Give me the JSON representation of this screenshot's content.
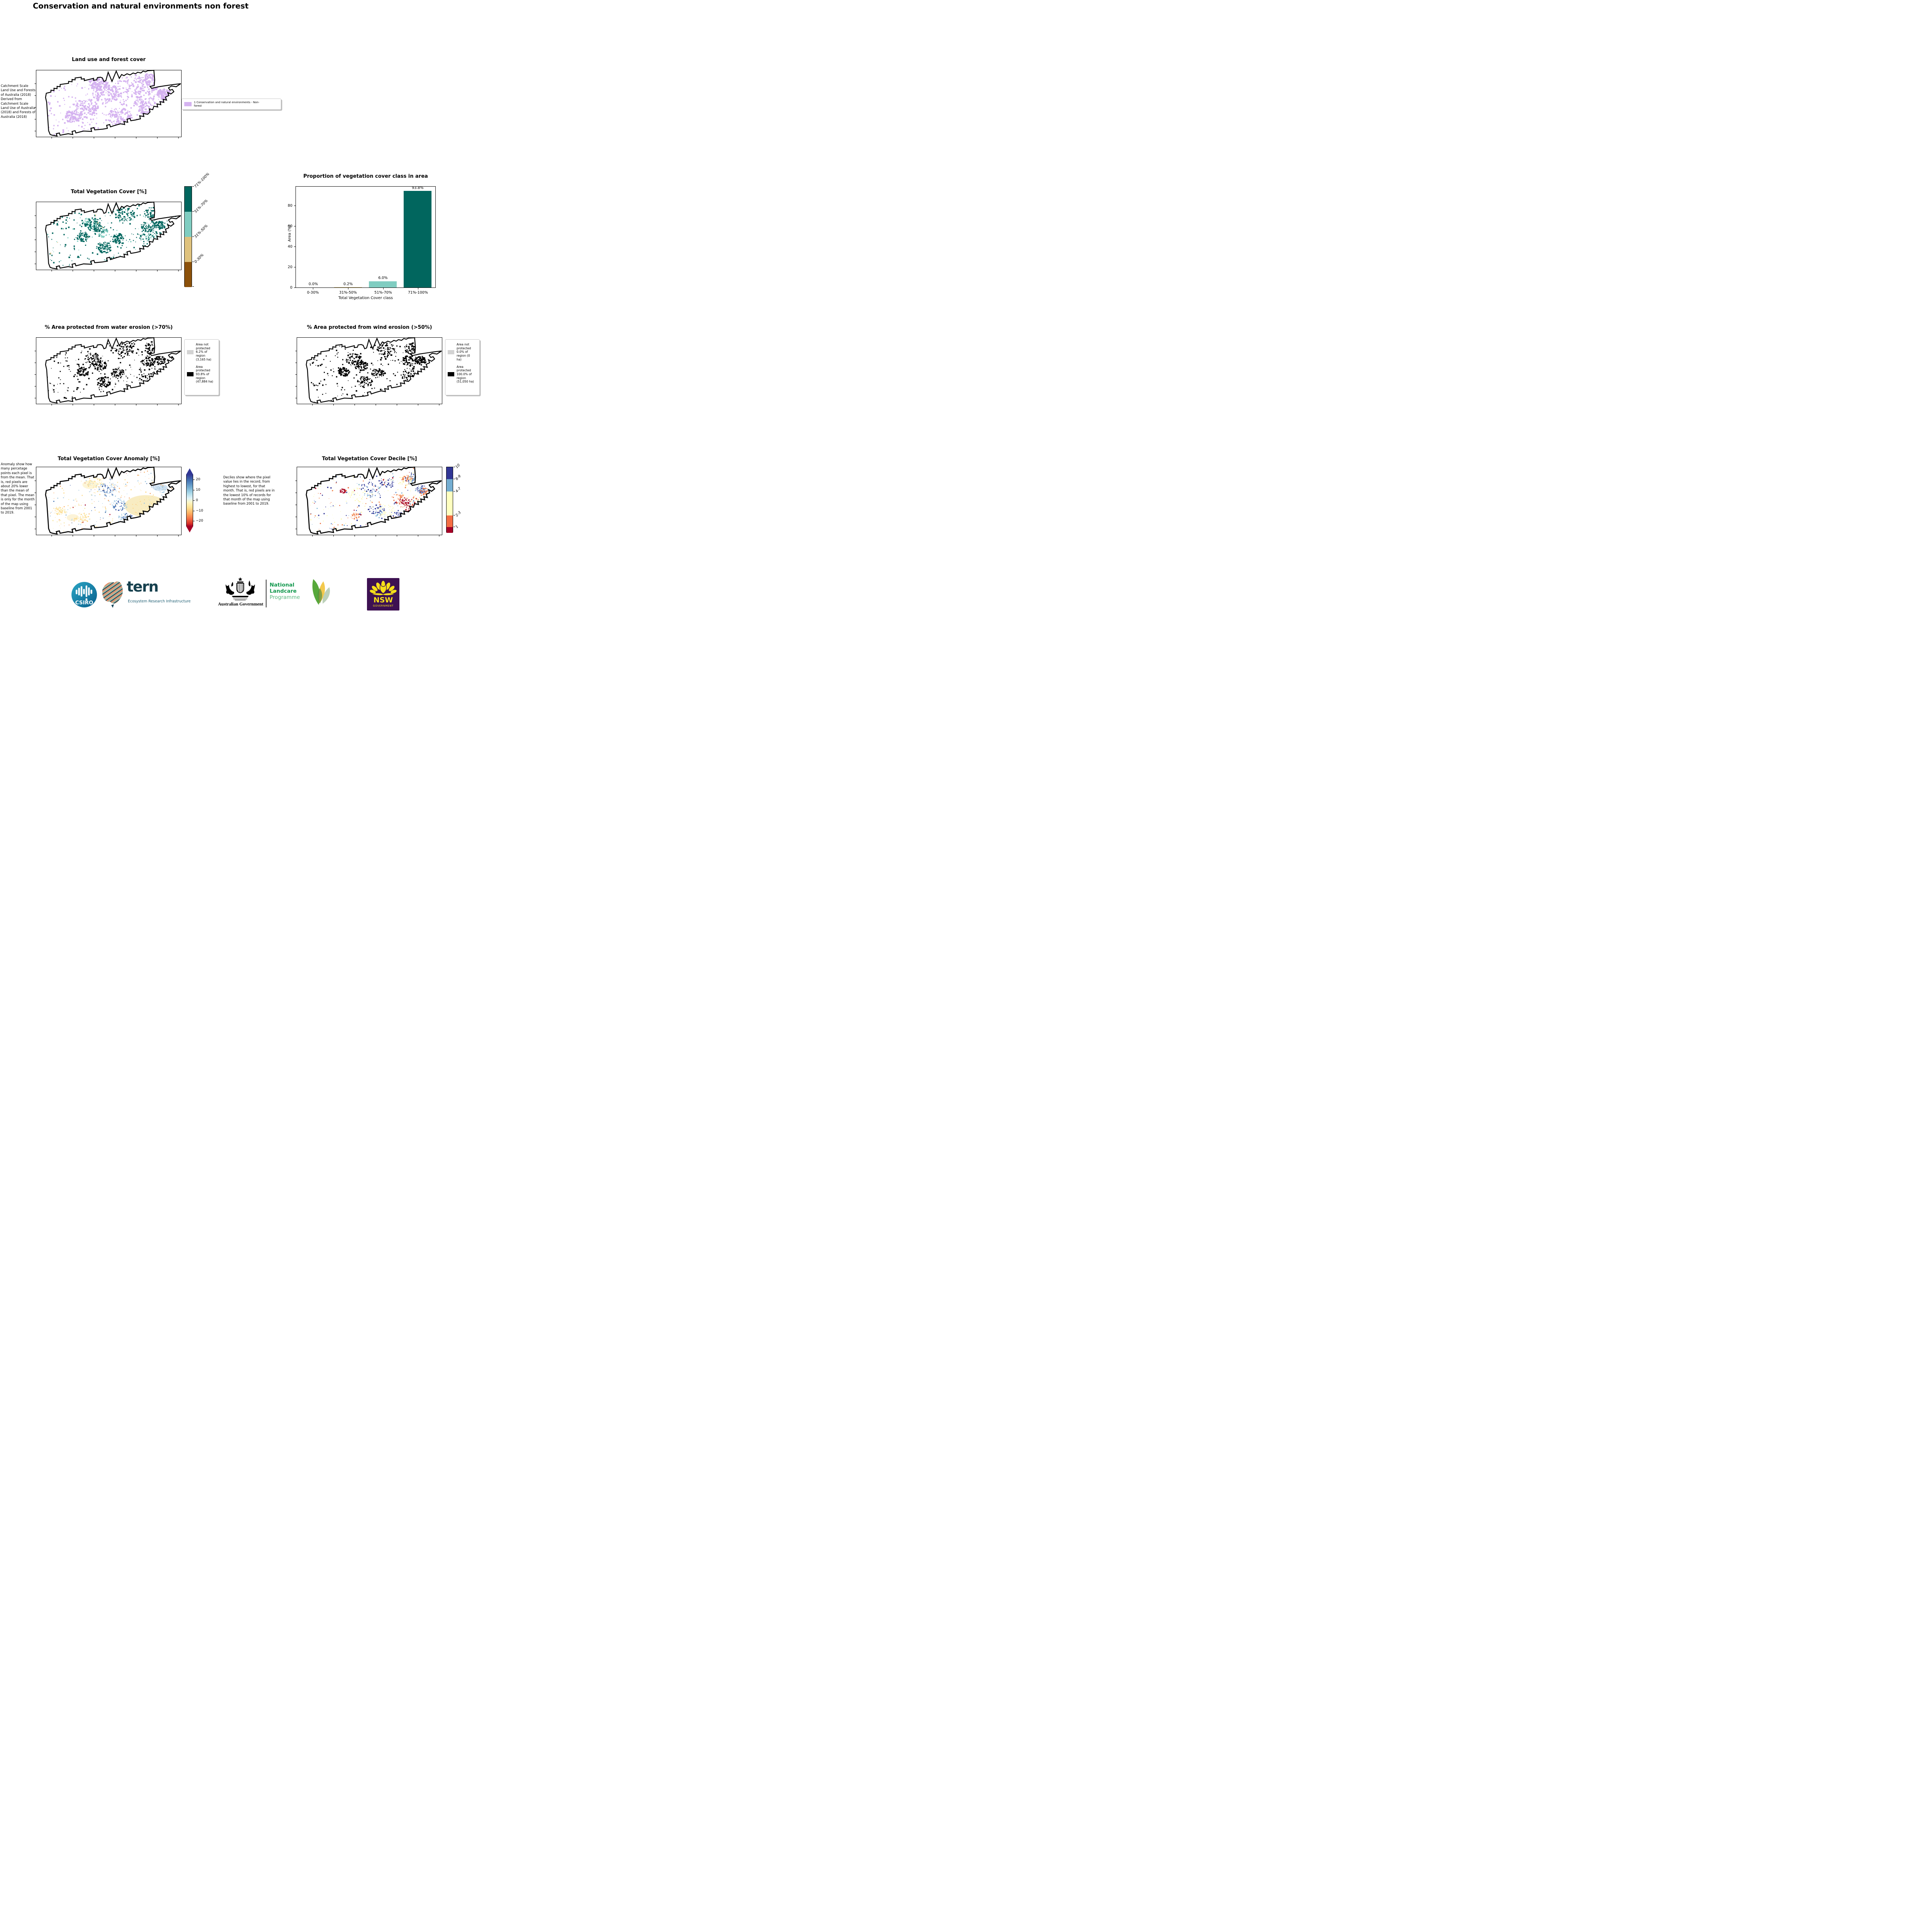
{
  "page": {
    "title": "Conservation and natural environments non forest"
  },
  "panels": {
    "land_use": {
      "title": "Land use and forest cover",
      "side_note": "Catchment Scale Land Use and Forests of Australia (2018) Derived from Catchment Scale Land Use of Australia (2018) and Forests of Australia (2018)",
      "legend": {
        "label": "1 Conservation and natural environments - Non-forest",
        "color": "#d5b3f0"
      }
    },
    "veg_cover": {
      "title": "Total Vegetation Cover [%]",
      "colorbar": {
        "labels": [
          "71%-100%",
          "51%-70%",
          "31%-50%",
          "0-30%"
        ],
        "colors": [
          "#01665e",
          "#80cdc1",
          "#dfc27d",
          "#8c510a"
        ]
      }
    },
    "water_erosion": {
      "title": "% Area protected from water erosion (>70%)",
      "legend": [
        {
          "label": "Area not protected 6.2% of region (3,165 ha)",
          "color": "#d3d3d3"
        },
        {
          "label": "Area protected 93.8% of region (47,884 ha)",
          "color": "#000000"
        }
      ]
    },
    "wind_erosion": {
      "title": "% Area protected from wind erosion (>50%)",
      "legend": [
        {
          "label": "Area not protected 0.0% of region (0 ha)",
          "color": "#d3d3d3"
        },
        {
          "label": "Area protected 100.0% of region (51,050 ha)",
          "color": "#000000"
        }
      ]
    },
    "anomaly": {
      "title": "Total Vegetation Cover Anomaly [%]",
      "side_note": "Anomaly show how many percetage points each pixel is from the mean. That is, red pixels are about 20% lower than the mean of that pixel. The mean is only for the month of the map using baseline from 2001 to 2019.",
      "colorbar_ticks": [
        "20",
        "10",
        "0",
        "−10",
        "−20"
      ]
    },
    "decile": {
      "title": "Total Vegetation Cover Decile [%]",
      "side_note": "Deciles show where the pixel value lies in the record, from highest to lowest, for that month. That is, red pixels are in the lowest 10% of records for that month of the map using baseline from 2001 to 2019.",
      "colorbar": {
        "labels": [
          "10",
          "8-9",
          "4-7",
          "2-3",
          "1"
        ],
        "colors": [
          "#313695",
          "#74add1",
          "#ffffbf",
          "#f46d43",
          "#a50026"
        ],
        "fractions": [
          0.182,
          0.187,
          0.364,
          0.178,
          0.089
        ]
      }
    }
  },
  "chart_data": {
    "type": "bar",
    "title": "Proportion of vegetation cover class in area",
    "categories": [
      "0-30%",
      "31%-50%",
      "51%-70%",
      "71%-100%"
    ],
    "values": [
      0.0,
      0.2,
      6.0,
      93.8
    ],
    "bar_labels": [
      "0.0%",
      "0.2%",
      "6.0%",
      "93.8%"
    ],
    "colors": [
      "#8c510a",
      "#dfc27d",
      "#80cdc1",
      "#01665e"
    ],
    "xlabel": "Total Vegetation Cover class",
    "ylabel": "Area (%)",
    "yticks": [
      0,
      20,
      40,
      60,
      80
    ],
    "ylim": [
      0,
      100
    ],
    "grid": false,
    "legend_position": "none"
  },
  "logos": {
    "csiro": {
      "text": "CSIRO",
      "color": "#0d7ba6"
    },
    "tern": {
      "name": "tern",
      "tagline": "Ecosystem Research Infrastructure"
    },
    "aus_gov": {
      "text": "Australian Government"
    },
    "landcare": {
      "line1": "National",
      "line2": "Landcare",
      "line3": "Programme",
      "green": "#14994f"
    },
    "nsw": {
      "name": "NSW",
      "sub": "GOVERNMENT",
      "purple": "#3d1152",
      "yellow": "#f6e019"
    }
  }
}
